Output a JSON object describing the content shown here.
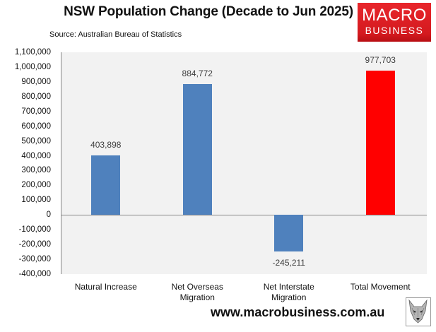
{
  "header": {
    "title": "NSW Population Change (Decade to Jun 2025)",
    "source": "Source: Australian Bureau of Statistics"
  },
  "logo": {
    "line1": "MACRO",
    "line2": "BUSINESS",
    "color": "#e0201f"
  },
  "footer": {
    "url": "www.macrobusiness.com.au",
    "icon": "wolf-icon"
  },
  "yaxis": {
    "ticks": [
      "1,100,000",
      "1,000,000",
      "900,000",
      "800,000",
      "700,000",
      "600,000",
      "500,000",
      "400,000",
      "300,000",
      "200,000",
      "100,000",
      "0",
      "-100,000",
      "-200,000",
      "-300,000",
      "-400,000"
    ]
  },
  "bars": [
    {
      "category": "Natural Increase",
      "value": 403898,
      "label": "403,898",
      "color": "#4f81bd",
      "xlabel_lines": [
        "Natural Increase"
      ]
    },
    {
      "category": "Net Overseas Migration",
      "value": 884772,
      "label": "884,772",
      "color": "#4f81bd",
      "xlabel_lines": [
        "Net Overseas",
        "Migration"
      ]
    },
    {
      "category": "Net Interstate Migration",
      "value": -245211,
      "label": "-245,211",
      "color": "#4f81bd",
      "xlabel_lines": [
        "Net Interstate",
        "Migration"
      ]
    },
    {
      "category": "Total Movement",
      "value": 977703,
      "label": "977,703",
      "color": "#ff0000",
      "xlabel_lines": [
        "Total Movement"
      ]
    }
  ],
  "chart_data": {
    "type": "bar",
    "title": "NSW Population Change (Decade to Jun 2025)",
    "subtitle": "Source: Australian Bureau of Statistics",
    "categories": [
      "Natural Increase",
      "Net Overseas Migration",
      "Net Interstate Migration",
      "Total Movement"
    ],
    "values": [
      403898,
      884772,
      -245211,
      977703
    ],
    "data_labels": [
      "403,898",
      "884,772",
      "-245,211",
      "977,703"
    ],
    "colors": [
      "#4f81bd",
      "#4f81bd",
      "#4f81bd",
      "#ff0000"
    ],
    "xlabel": "",
    "ylabel": "",
    "ylim": [
      -400000,
      1100000
    ],
    "ytick_step": 100000,
    "grid": false,
    "legend": null
  }
}
